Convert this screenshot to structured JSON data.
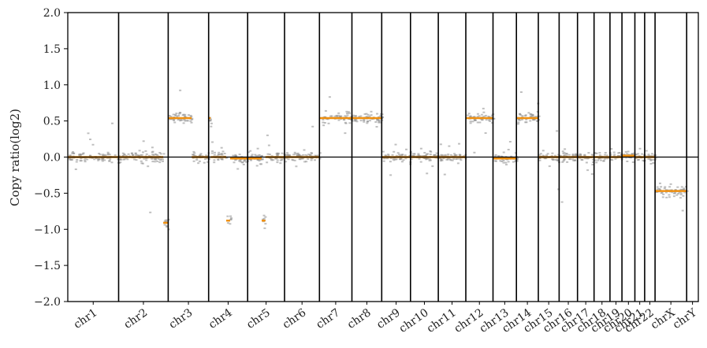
{
  "chart_data": {
    "type": "scatter",
    "title": "",
    "xlabel": "",
    "ylabel": "Copy ratio(log2)",
    "ylim": [
      -2.0,
      2.0
    ],
    "yticks": [
      "2.0",
      "1.5",
      "1.0",
      "0.5",
      "0.0",
      "−0.5",
      "−1.0",
      "−1.5",
      "−2.0"
    ],
    "ytick_values": [
      2.0,
      1.5,
      1.0,
      0.5,
      0.0,
      -0.5,
      -1.0,
      -1.5,
      -2.0
    ],
    "baseline": 0.0,
    "colors": {
      "points": "#8a8a8a",
      "segments": "#f0900f",
      "axes": "#000000"
    },
    "chromosomes": [
      {
        "name": "chr1",
        "length": 249,
        "segments": [
          {
            "start": 0,
            "end": 1,
            "value": 0.0
          }
        ]
      },
      {
        "name": "chr2",
        "length": 243,
        "segments": [
          {
            "start": 0,
            "end": 0.9,
            "value": 0.0
          },
          {
            "start": 0.9,
            "end": 1,
            "value": -0.91
          }
        ]
      },
      {
        "name": "chr3",
        "length": 198,
        "segments": [
          {
            "start": 0,
            "end": 0.58,
            "value": 0.54
          },
          {
            "start": 0.58,
            "end": 1,
            "value": 0.0
          }
        ]
      },
      {
        "name": "chr4",
        "length": 191,
        "segments": [
          {
            "start": 0,
            "end": 0.05,
            "value": 0.54
          },
          {
            "start": 0.05,
            "end": 0.45,
            "value": 0.0
          },
          {
            "start": 0.45,
            "end": 0.55,
            "value": -0.88
          },
          {
            "start": 0.55,
            "end": 1,
            "value": -0.02
          }
        ]
      },
      {
        "name": "chr5",
        "length": 181,
        "segments": [
          {
            "start": 0,
            "end": 0.38,
            "value": -0.02
          },
          {
            "start": 0.38,
            "end": 0.48,
            "value": -0.88
          },
          {
            "start": 0.48,
            "end": 1,
            "value": 0.0
          }
        ]
      },
      {
        "name": "chr6",
        "length": 171,
        "segments": [
          {
            "start": 0,
            "end": 1,
            "value": 0.0
          }
        ]
      },
      {
        "name": "chr7",
        "length": 159,
        "segments": [
          {
            "start": 0,
            "end": 1,
            "value": 0.54
          }
        ]
      },
      {
        "name": "chr8",
        "length": 146,
        "segments": [
          {
            "start": 0,
            "end": 1,
            "value": 0.54
          }
        ]
      },
      {
        "name": "chr9",
        "length": 141,
        "segments": [
          {
            "start": 0,
            "end": 1,
            "value": 0.0
          }
        ]
      },
      {
        "name": "chr10",
        "length": 136,
        "segments": [
          {
            "start": 0,
            "end": 1,
            "value": 0.0
          }
        ]
      },
      {
        "name": "chr11",
        "length": 135,
        "segments": [
          {
            "start": 0,
            "end": 1,
            "value": 0.0
          }
        ]
      },
      {
        "name": "chr12",
        "length": 133,
        "segments": [
          {
            "start": 0,
            "end": 1,
            "value": 0.54
          }
        ]
      },
      {
        "name": "chr13",
        "length": 115,
        "segments": [
          {
            "start": 0,
            "end": 1,
            "value": -0.02
          }
        ]
      },
      {
        "name": "chr14",
        "length": 107,
        "segments": [
          {
            "start": 0,
            "end": 1,
            "value": 0.54
          }
        ]
      },
      {
        "name": "chr15",
        "length": 102,
        "segments": [
          {
            "start": 0,
            "end": 1,
            "value": 0.0
          }
        ]
      },
      {
        "name": "chr16",
        "length": 90,
        "segments": [
          {
            "start": 0,
            "end": 1,
            "value": 0.0
          }
        ]
      },
      {
        "name": "chr17",
        "length": 81,
        "segments": [
          {
            "start": 0,
            "end": 1,
            "value": 0.0
          }
        ]
      },
      {
        "name": "chr18",
        "length": 78,
        "segments": [
          {
            "start": 0,
            "end": 1,
            "value": 0.0
          }
        ]
      },
      {
        "name": "chr19",
        "length": 59,
        "segments": [
          {
            "start": 0,
            "end": 1,
            "value": 0.0
          }
        ]
      },
      {
        "name": "chr20",
        "length": 63,
        "segments": [
          {
            "start": 0,
            "end": 1,
            "value": 0.02
          }
        ]
      },
      {
        "name": "chr21",
        "length": 48,
        "segments": [
          {
            "start": 0,
            "end": 1,
            "value": 0.0
          }
        ]
      },
      {
        "name": "chr22",
        "length": 51,
        "segments": [
          {
            "start": 0,
            "end": 1,
            "value": 0.0
          }
        ]
      },
      {
        "name": "chrX",
        "length": 155,
        "segments": [
          {
            "start": 0,
            "end": 1,
            "value": -0.47
          }
        ]
      },
      {
        "name": "chrY",
        "length": 57,
        "segments": []
      }
    ]
  }
}
